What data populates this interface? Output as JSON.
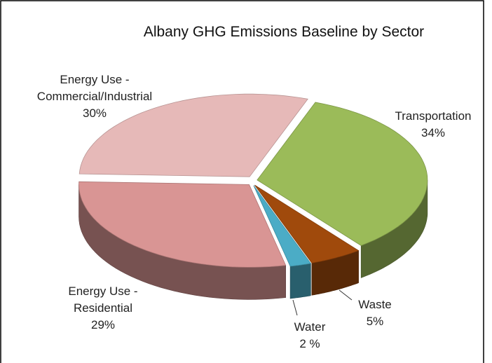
{
  "chart_data": {
    "type": "pie3d",
    "title": "Albany GHG Emissions Baseline by Sector",
    "categories": [
      "Transportation",
      "Waste",
      "Water",
      "Energy Use - Residential",
      "Energy Use - Commercial/Industrial"
    ],
    "values": [
      34,
      5,
      2,
      29,
      30
    ],
    "value_labels": [
      "34%",
      "5%",
      "2 %",
      "29%",
      "30%"
    ],
    "colors": [
      "#9bbb59",
      "#a04a0c",
      "#4bacc6",
      "#d99594",
      "#e6b9b8"
    ]
  }
}
